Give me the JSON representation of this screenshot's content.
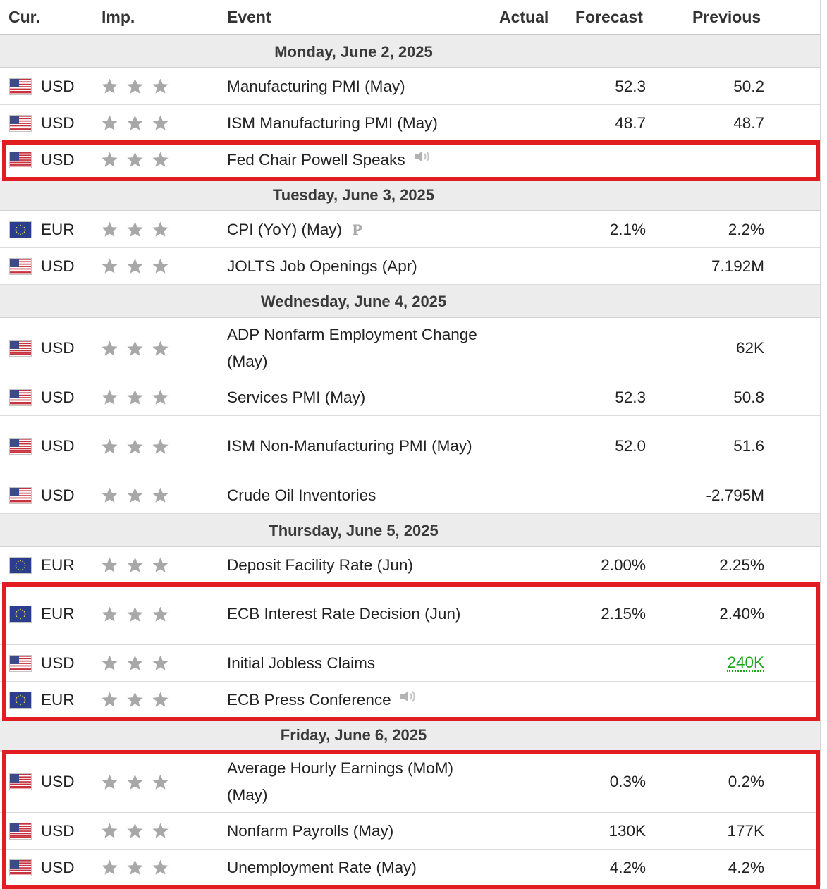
{
  "columns": {
    "cur": "Cur.",
    "imp": "Imp.",
    "event": "Event",
    "actual": "Actual",
    "forecast": "Forecast",
    "previous": "Previous"
  },
  "colors": {
    "highlight_border": "#e11d22",
    "star": "#a8a8a8",
    "positive_value": "#1aa51a",
    "day_header_bg": "#ececec"
  },
  "days": [
    {
      "date": "Monday, June 2, 2025",
      "events": [
        {
          "flag": "us-flag-icon",
          "currency": "USD",
          "importance": 3,
          "event": "Manufacturing PMI (May)",
          "actual": "",
          "forecast": "52.3",
          "previous": "50.2"
        },
        {
          "flag": "us-flag-icon",
          "currency": "USD",
          "importance": 3,
          "event": "ISM Manufacturing PMI (May)",
          "actual": "",
          "forecast": "48.7",
          "previous": "48.7"
        },
        {
          "flag": "us-flag-icon",
          "currency": "USD",
          "importance": 3,
          "event": "Fed Chair Powell Speaks",
          "badge": "speaker-icon",
          "actual": "",
          "forecast": "",
          "previous": "",
          "highlighted": true
        }
      ]
    },
    {
      "date": "Tuesday, June 3, 2025",
      "events": [
        {
          "flag": "eu-flag-icon",
          "currency": "EUR",
          "importance": 3,
          "event": "CPI (YoY) (May)",
          "badge": "P",
          "actual": "",
          "forecast": "2.1%",
          "previous": "2.2%"
        },
        {
          "flag": "us-flag-icon",
          "currency": "USD",
          "importance": 3,
          "event": "JOLTS Job Openings (Apr)",
          "actual": "",
          "forecast": "",
          "previous": "7.192M"
        }
      ]
    },
    {
      "date": "Wednesday, June 4, 2025",
      "events": [
        {
          "flag": "us-flag-icon",
          "currency": "USD",
          "importance": 3,
          "event": "ADP Nonfarm Employment Change (May)",
          "actual": "",
          "forecast": "",
          "previous": "62K"
        },
        {
          "flag": "us-flag-icon",
          "currency": "USD",
          "importance": 3,
          "event": "Services PMI (May)",
          "actual": "",
          "forecast": "52.3",
          "previous": "50.8"
        },
        {
          "flag": "us-flag-icon",
          "currency": "USD",
          "importance": 3,
          "event": "ISM Non-Manufacturing PMI (May)",
          "actual": "",
          "forecast": "52.0",
          "previous": "51.6"
        },
        {
          "flag": "us-flag-icon",
          "currency": "USD",
          "importance": 3,
          "event": "Crude Oil Inventories",
          "actual": "",
          "forecast": "",
          "previous": "-2.795M"
        }
      ]
    },
    {
      "date": "Thursday, June 5, 2025",
      "events": [
        {
          "flag": "eu-flag-icon",
          "currency": "EUR",
          "importance": 3,
          "event": "Deposit Facility Rate (Jun)",
          "actual": "",
          "forecast": "2.00%",
          "previous": "2.25%"
        },
        {
          "flag": "eu-flag-icon",
          "currency": "EUR",
          "importance": 3,
          "event": "ECB Interest Rate Decision (Jun)",
          "actual": "",
          "forecast": "2.15%",
          "previous": "2.40%",
          "highlighted": true
        },
        {
          "flag": "us-flag-icon",
          "currency": "USD",
          "importance": 3,
          "event": "Initial Jobless Claims",
          "actual": "",
          "forecast": "",
          "previous": "240K",
          "previous_color": "green",
          "highlighted": true
        },
        {
          "flag": "eu-flag-icon",
          "currency": "EUR",
          "importance": 3,
          "event": "ECB Press Conference",
          "badge": "speaker-icon",
          "actual": "",
          "forecast": "",
          "previous": "",
          "highlighted": true
        }
      ]
    },
    {
      "date": "Friday, June 6, 2025",
      "events": [
        {
          "flag": "us-flag-icon",
          "currency": "USD",
          "importance": 3,
          "event": "Average Hourly Earnings (MoM) (May)",
          "actual": "",
          "forecast": "0.3%",
          "previous": "0.2%",
          "highlighted": true
        },
        {
          "flag": "us-flag-icon",
          "currency": "USD",
          "importance": 3,
          "event": "Nonfarm Payrolls (May)",
          "actual": "",
          "forecast": "130K",
          "previous": "177K",
          "highlighted": true
        },
        {
          "flag": "us-flag-icon",
          "currency": "USD",
          "importance": 3,
          "event": "Unemployment Rate (May)",
          "actual": "",
          "forecast": "4.2%",
          "previous": "4.2%",
          "highlighted": true
        }
      ]
    }
  ]
}
